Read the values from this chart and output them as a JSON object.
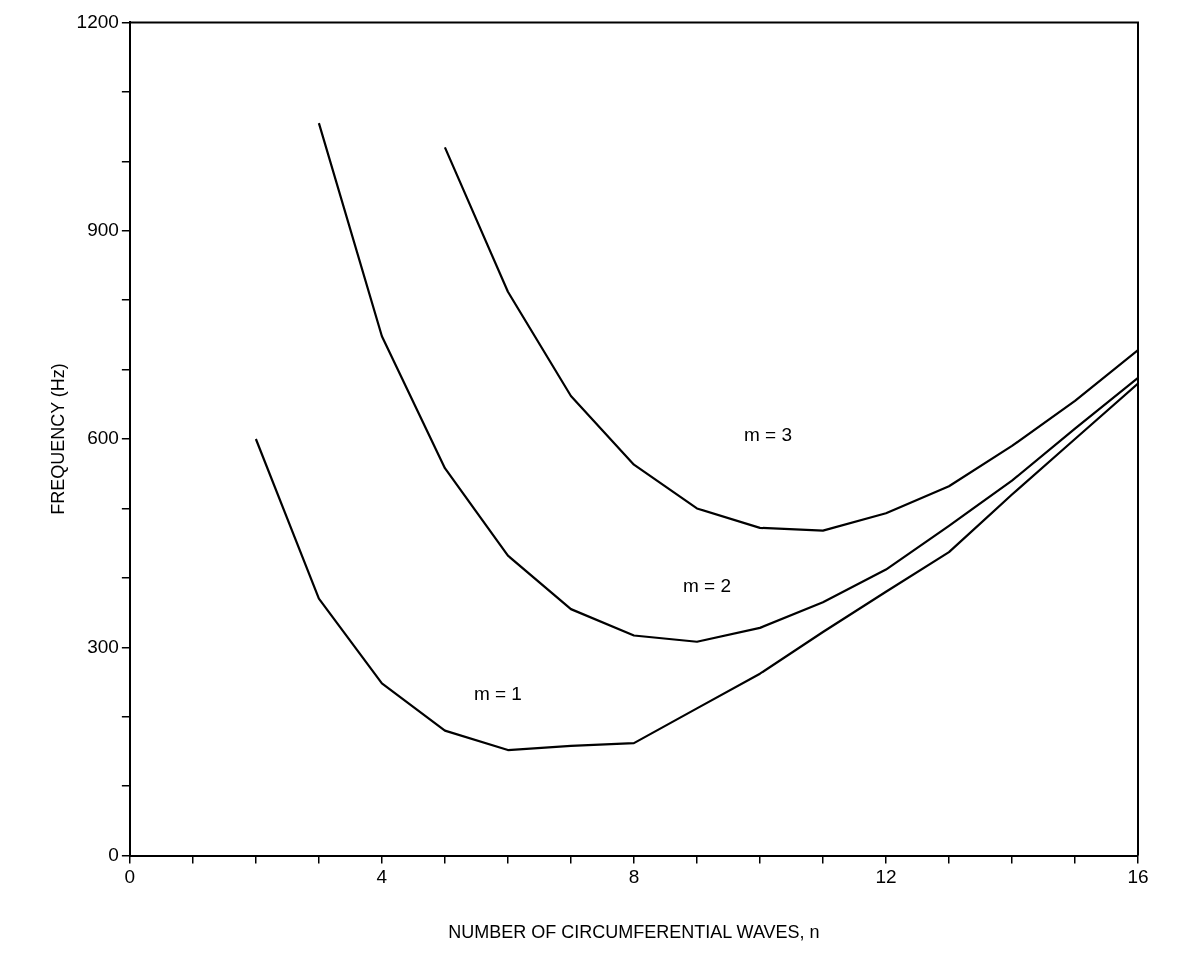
{
  "chart_data": {
    "type": "line",
    "xlabel": "NUMBER OF CIRCUMFERENTIAL WAVES, n",
    "ylabel": "FREQUENCY (Hz)",
    "series": [
      {
        "color": "#000000",
        "x": [
          2,
          3,
          4,
          5,
          6,
          7,
          8,
          9,
          10,
          11,
          12,
          13,
          14,
          15,
          16
        ],
        "values": [
          600,
          370,
          248,
          180,
          152,
          158,
          162,
          212,
          262,
          322,
          380,
          437,
          520,
          600,
          680
        ]
      },
      {
        "color": "#000000",
        "x": [
          3,
          4,
          5,
          6,
          7,
          8,
          9,
          10,
          11,
          12,
          13,
          14,
          15,
          16
        ],
        "values": [
          1055,
          748,
          558,
          432,
          355,
          317,
          308,
          328,
          365,
          412,
          475,
          540,
          615,
          688
        ]
      },
      {
        "color": "#000000",
        "x": [
          5,
          6,
          7,
          8,
          9,
          10,
          11,
          12,
          13,
          14,
          15,
          16
        ],
        "values": [
          1020,
          812,
          662,
          563,
          500,
          472,
          468,
          493,
          532,
          590,
          655,
          728
        ]
      }
    ],
    "annotations": [
      "m = 1",
      "m = 2",
      "m = 3"
    ],
    "xlim": [
      0,
      16
    ],
    "ylim": [
      0,
      1200
    ],
    "xticks": [
      0,
      {
        "value": 1,
        "label": null
      },
      {
        "value": 2,
        "label": null
      },
      {
        "value": 3,
        "label": null
      },
      4,
      {
        "value": 5,
        "label": null
      },
      {
        "value": 6,
        "label": null
      },
      {
        "value": 7,
        "label": null
      },
      8,
      {
        "value": 9,
        "label": null
      },
      {
        "value": 10,
        "label": null
      },
      {
        "value": 11,
        "label": null
      },
      12,
      {
        "value": 13,
        "label": null
      },
      {
        "value": 14,
        "label": null
      },
      {
        "value": 15,
        "label": null
      },
      16
    ],
    "yticks": [
      0,
      {
        "value": 100,
        "label": null
      },
      {
        "value": 200,
        "label": null
      },
      300,
      {
        "value": 400,
        "label": null
      },
      {
        "value": 500,
        "label": null
      },
      600,
      {
        "value": 700,
        "label": null
      },
      {
        "value": 800,
        "label": null
      },
      900,
      {
        "value": 1000,
        "label": null
      },
      {
        "value": 1100,
        "label": null
      },
      1200
    ],
    "grid": false,
    "legend": false,
    "marker": "none",
    "line_style": "solid"
  }
}
